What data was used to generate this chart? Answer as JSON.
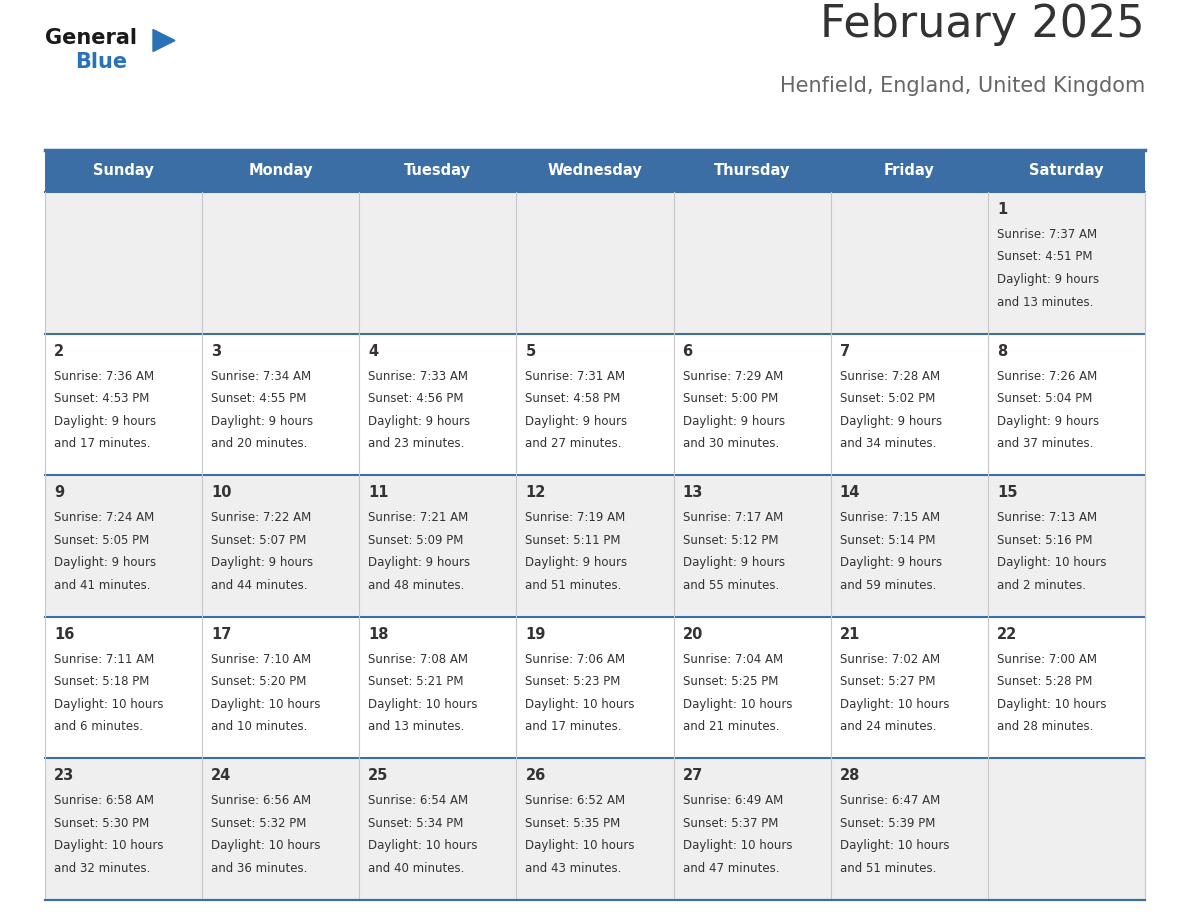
{
  "title": "February 2025",
  "subtitle": "Henfield, England, United Kingdom",
  "days_of_week": [
    "Sunday",
    "Monday",
    "Tuesday",
    "Wednesday",
    "Thursday",
    "Friday",
    "Saturday"
  ],
  "header_bg": "#3a6ea5",
  "header_text": "#ffffff",
  "row_bg_odd": "#efefef",
  "row_bg_even": "#ffffff",
  "cell_line_color": "#3a6ea5",
  "day_num_color": "#333333",
  "info_text_color": "#333333",
  "title_color": "#333333",
  "subtitle_color": "#666666",
  "calendar_data": [
    [
      {
        "day": null,
        "sunrise": null,
        "sunset": null,
        "daylight": null
      },
      {
        "day": null,
        "sunrise": null,
        "sunset": null,
        "daylight": null
      },
      {
        "day": null,
        "sunrise": null,
        "sunset": null,
        "daylight": null
      },
      {
        "day": null,
        "sunrise": null,
        "sunset": null,
        "daylight": null
      },
      {
        "day": null,
        "sunrise": null,
        "sunset": null,
        "daylight": null
      },
      {
        "day": null,
        "sunrise": null,
        "sunset": null,
        "daylight": null
      },
      {
        "day": 1,
        "sunrise": "7:37 AM",
        "sunset": "4:51 PM",
        "daylight": "9 hours and 13 minutes."
      }
    ],
    [
      {
        "day": 2,
        "sunrise": "7:36 AM",
        "sunset": "4:53 PM",
        "daylight": "9 hours and 17 minutes."
      },
      {
        "day": 3,
        "sunrise": "7:34 AM",
        "sunset": "4:55 PM",
        "daylight": "9 hours and 20 minutes."
      },
      {
        "day": 4,
        "sunrise": "7:33 AM",
        "sunset": "4:56 PM",
        "daylight": "9 hours and 23 minutes."
      },
      {
        "day": 5,
        "sunrise": "7:31 AM",
        "sunset": "4:58 PM",
        "daylight": "9 hours and 27 minutes."
      },
      {
        "day": 6,
        "sunrise": "7:29 AM",
        "sunset": "5:00 PM",
        "daylight": "9 hours and 30 minutes."
      },
      {
        "day": 7,
        "sunrise": "7:28 AM",
        "sunset": "5:02 PM",
        "daylight": "9 hours and 34 minutes."
      },
      {
        "day": 8,
        "sunrise": "7:26 AM",
        "sunset": "5:04 PM",
        "daylight": "9 hours and 37 minutes."
      }
    ],
    [
      {
        "day": 9,
        "sunrise": "7:24 AM",
        "sunset": "5:05 PM",
        "daylight": "9 hours and 41 minutes."
      },
      {
        "day": 10,
        "sunrise": "7:22 AM",
        "sunset": "5:07 PM",
        "daylight": "9 hours and 44 minutes."
      },
      {
        "day": 11,
        "sunrise": "7:21 AM",
        "sunset": "5:09 PM",
        "daylight": "9 hours and 48 minutes."
      },
      {
        "day": 12,
        "sunrise": "7:19 AM",
        "sunset": "5:11 PM",
        "daylight": "9 hours and 51 minutes."
      },
      {
        "day": 13,
        "sunrise": "7:17 AM",
        "sunset": "5:12 PM",
        "daylight": "9 hours and 55 minutes."
      },
      {
        "day": 14,
        "sunrise": "7:15 AM",
        "sunset": "5:14 PM",
        "daylight": "9 hours and 59 minutes."
      },
      {
        "day": 15,
        "sunrise": "7:13 AM",
        "sunset": "5:16 PM",
        "daylight": "10 hours and 2 minutes."
      }
    ],
    [
      {
        "day": 16,
        "sunrise": "7:11 AM",
        "sunset": "5:18 PM",
        "daylight": "10 hours and 6 minutes."
      },
      {
        "day": 17,
        "sunrise": "7:10 AM",
        "sunset": "5:20 PM",
        "daylight": "10 hours and 10 minutes."
      },
      {
        "day": 18,
        "sunrise": "7:08 AM",
        "sunset": "5:21 PM",
        "daylight": "10 hours and 13 minutes."
      },
      {
        "day": 19,
        "sunrise": "7:06 AM",
        "sunset": "5:23 PM",
        "daylight": "10 hours and 17 minutes."
      },
      {
        "day": 20,
        "sunrise": "7:04 AM",
        "sunset": "5:25 PM",
        "daylight": "10 hours and 21 minutes."
      },
      {
        "day": 21,
        "sunrise": "7:02 AM",
        "sunset": "5:27 PM",
        "daylight": "10 hours and 24 minutes."
      },
      {
        "day": 22,
        "sunrise": "7:00 AM",
        "sunset": "5:28 PM",
        "daylight": "10 hours and 28 minutes."
      }
    ],
    [
      {
        "day": 23,
        "sunrise": "6:58 AM",
        "sunset": "5:30 PM",
        "daylight": "10 hours and 32 minutes."
      },
      {
        "day": 24,
        "sunrise": "6:56 AM",
        "sunset": "5:32 PM",
        "daylight": "10 hours and 36 minutes."
      },
      {
        "day": 25,
        "sunrise": "6:54 AM",
        "sunset": "5:34 PM",
        "daylight": "10 hours and 40 minutes."
      },
      {
        "day": 26,
        "sunrise": "6:52 AM",
        "sunset": "5:35 PM",
        "daylight": "10 hours and 43 minutes."
      },
      {
        "day": 27,
        "sunrise": "6:49 AM",
        "sunset": "5:37 PM",
        "daylight": "10 hours and 47 minutes."
      },
      {
        "day": 28,
        "sunrise": "6:47 AM",
        "sunset": "5:39 PM",
        "daylight": "10 hours and 51 minutes."
      },
      {
        "day": null,
        "sunrise": null,
        "sunset": null,
        "daylight": null
      }
    ]
  ]
}
